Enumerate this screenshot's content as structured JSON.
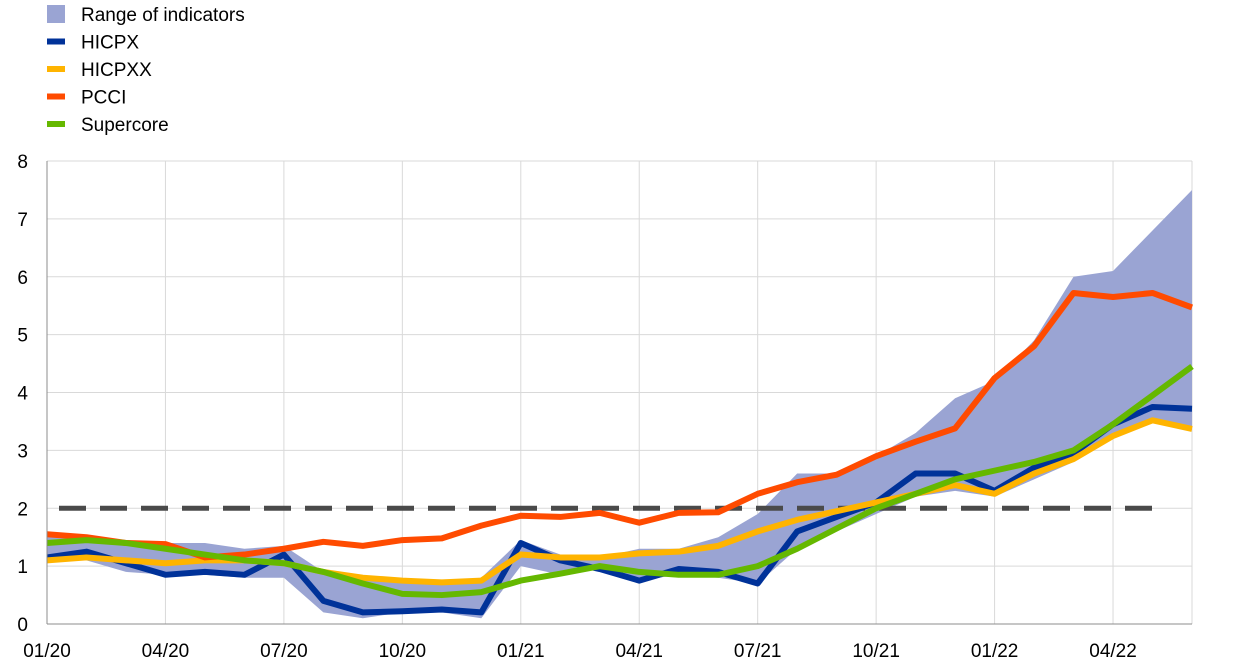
{
  "chart_data": {
    "type": "line",
    "title": "",
    "xlabel": "",
    "ylabel": "",
    "ylim": [
      0,
      8
    ],
    "yticks": [
      0,
      1,
      2,
      3,
      4,
      5,
      6,
      7,
      8
    ],
    "grid": "vertical and horizontal",
    "legend_position": "top-left",
    "x": [
      "2020-01",
      "2020-02",
      "2020-03",
      "2020-04",
      "2020-05",
      "2020-06",
      "2020-07",
      "2020-08",
      "2020-09",
      "2020-10",
      "2020-11",
      "2020-12",
      "2021-01",
      "2021-02",
      "2021-03",
      "2021-04",
      "2021-05",
      "2021-06",
      "2021-07",
      "2021-08",
      "2021-09",
      "2021-10",
      "2021-11",
      "2021-12",
      "2022-01",
      "2022-02",
      "2022-03",
      "2022-04",
      "2022-05",
      "2022-06"
    ],
    "xtick_labels": [
      "01/20",
      "04/20",
      "07/20",
      "10/20",
      "01/21",
      "04/21",
      "07/21",
      "10/21",
      "01/22",
      "04/22"
    ],
    "xtick_index": [
      0,
      3,
      6,
      9,
      12,
      15,
      18,
      21,
      24,
      27
    ],
    "range": {
      "name": "Range of indicators",
      "color": "#9aa4d3",
      "low": [
        1.1,
        1.1,
        0.9,
        0.85,
        0.85,
        0.8,
        0.8,
        0.2,
        0.1,
        0.2,
        0.2,
        0.1,
        1.0,
        0.85,
        0.95,
        0.75,
        0.85,
        0.8,
        0.7,
        1.3,
        1.6,
        1.9,
        2.2,
        2.3,
        2.2,
        2.5,
        2.8,
        3.2,
        3.5,
        3.35
      ],
      "high": [
        1.6,
        1.5,
        1.45,
        1.4,
        1.4,
        1.3,
        1.35,
        0.9,
        0.8,
        0.75,
        0.75,
        0.8,
        1.45,
        1.2,
        1.15,
        1.3,
        1.3,
        1.5,
        1.9,
        2.6,
        2.6,
        2.9,
        3.3,
        3.9,
        4.2,
        4.9,
        6.0,
        6.1,
        6.8,
        7.5
      ]
    },
    "series": [
      {
        "name": "HICPX",
        "color": "#003299",
        "values": [
          1.15,
          1.25,
          1.05,
          0.85,
          0.9,
          0.85,
          1.2,
          0.4,
          0.2,
          0.22,
          0.25,
          0.2,
          1.4,
          1.1,
          0.95,
          0.75,
          0.95,
          0.9,
          0.7,
          1.6,
          1.85,
          2.1,
          2.6,
          2.6,
          2.3,
          2.7,
          2.95,
          3.45,
          3.75,
          3.72
        ]
      },
      {
        "name": "HICPXX",
        "color": "#ffb400",
        "values": [
          1.1,
          1.15,
          1.1,
          1.05,
          1.1,
          1.1,
          1.05,
          0.9,
          0.8,
          0.75,
          0.72,
          0.75,
          1.2,
          1.15,
          1.15,
          1.22,
          1.25,
          1.35,
          1.6,
          1.8,
          1.95,
          2.1,
          2.25,
          2.4,
          2.25,
          2.6,
          2.85,
          3.25,
          3.52,
          3.37
        ]
      },
      {
        "name": "PCCI",
        "color": "#ff4b00",
        "values": [
          1.55,
          1.5,
          1.4,
          1.38,
          1.15,
          1.2,
          1.3,
          1.42,
          1.35,
          1.45,
          1.48,
          1.7,
          1.87,
          1.85,
          1.92,
          1.75,
          1.92,
          1.93,
          2.25,
          2.45,
          2.58,
          2.9,
          3.15,
          3.38,
          4.25,
          4.8,
          5.72,
          5.65,
          5.72,
          5.47
        ]
      },
      {
        "name": "Supercore",
        "color": "#65b800",
        "values": [
          1.4,
          1.45,
          1.4,
          1.3,
          1.2,
          1.1,
          1.05,
          0.9,
          0.7,
          0.52,
          0.5,
          0.55,
          0.75,
          0.87,
          1.0,
          0.9,
          0.85,
          0.85,
          1.0,
          1.3,
          1.65,
          2.0,
          2.25,
          2.5,
          2.65,
          2.8,
          3.0,
          3.45,
          3.95,
          4.45
        ]
      }
    ],
    "reference_line": {
      "value": 2,
      "color": "#4a4a4a",
      "style": "dashed"
    }
  }
}
